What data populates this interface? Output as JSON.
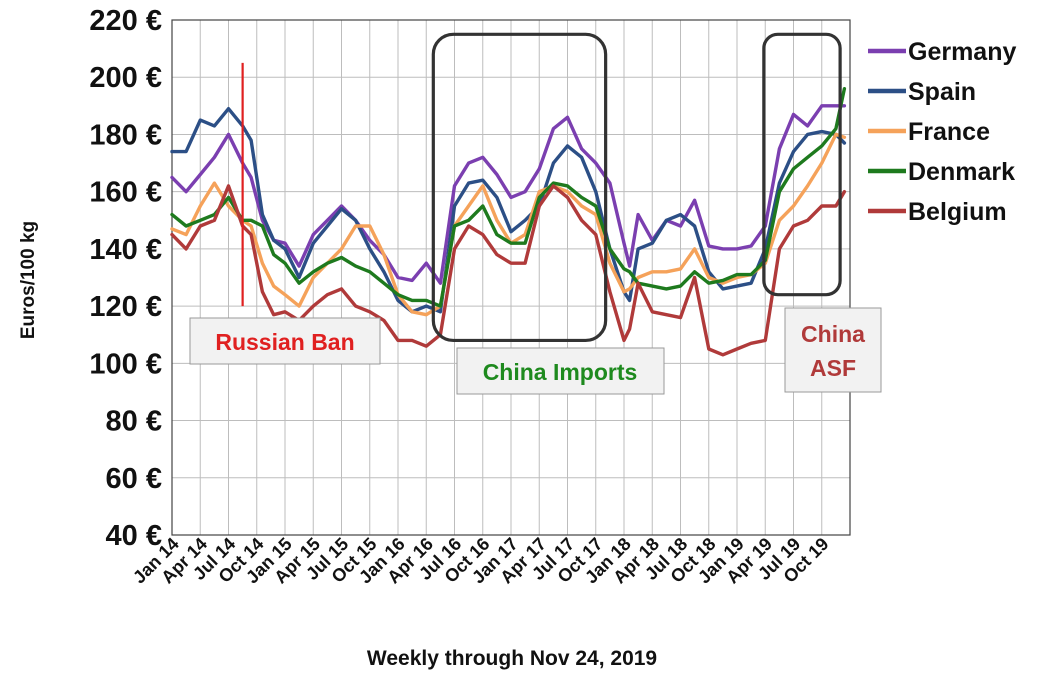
{
  "chart_data": {
    "type": "line",
    "title": "",
    "xlabel": "Weekly through Nov 24, 2019",
    "ylabel": "Euros/100 kg",
    "ylim": [
      40,
      220
    ],
    "y_ticks": [
      {
        "value": 40,
        "label": "40 €"
      },
      {
        "value": 60,
        "label": "60 €"
      },
      {
        "value": 80,
        "label": "80 €"
      },
      {
        "value": 100,
        "label": "100 €"
      },
      {
        "value": 120,
        "label": "120 €"
      },
      {
        "value": 140,
        "label": "140 €"
      },
      {
        "value": 160,
        "label": "160 €"
      },
      {
        "value": 180,
        "label": "180 €"
      },
      {
        "value": 200,
        "label": "200 €"
      },
      {
        "value": 220,
        "label": "220 €"
      }
    ],
    "x_ticks": [
      "Jan 14",
      "Apr 14",
      "Jul 14",
      "Oct 14",
      "Jan 15",
      "Apr 15",
      "Jul 15",
      "Oct 15",
      "Jan 16",
      "Apr 16",
      "Jul 16",
      "Oct 16",
      "Jan 17",
      "Apr 17",
      "Jul 17",
      "Oct 17",
      "Jan 18",
      "Apr 18",
      "Jul 18",
      "Oct 18",
      "Jan 19",
      "Apr 19",
      "Jul 19",
      "Oct 19"
    ],
    "x_range": [
      "Jan 14",
      "Nov 24, 2019"
    ],
    "grid": true,
    "legend_position": "right",
    "series": [
      {
        "name": "Germany",
        "color": "#7b3fb0",
        "points": [
          [
            0,
            165
          ],
          [
            0.5,
            160
          ],
          [
            1,
            166
          ],
          [
            1.5,
            172
          ],
          [
            2,
            180
          ],
          [
            2.5,
            170
          ],
          [
            2.8,
            165
          ],
          [
            3.2,
            150
          ],
          [
            3.6,
            143
          ],
          [
            4,
            142
          ],
          [
            4.5,
            134
          ],
          [
            5,
            145
          ],
          [
            5.5,
            150
          ],
          [
            6,
            155
          ],
          [
            6.5,
            150
          ],
          [
            7,
            143
          ],
          [
            7.5,
            138
          ],
          [
            8,
            130
          ],
          [
            8.5,
            129
          ],
          [
            9,
            135
          ],
          [
            9.5,
            128
          ],
          [
            10,
            162
          ],
          [
            10.5,
            170
          ],
          [
            11,
            172
          ],
          [
            11.5,
            166
          ],
          [
            12,
            158
          ],
          [
            12.5,
            160
          ],
          [
            13,
            168
          ],
          [
            13.5,
            182
          ],
          [
            14,
            186
          ],
          [
            14.5,
            175
          ],
          [
            15,
            170
          ],
          [
            15.5,
            163
          ],
          [
            16,
            142
          ],
          [
            16.2,
            134
          ],
          [
            16.5,
            152
          ],
          [
            17,
            143
          ],
          [
            17.5,
            150
          ],
          [
            18,
            148
          ],
          [
            18.5,
            157
          ],
          [
            19,
            141
          ],
          [
            19.5,
            140
          ],
          [
            20,
            140
          ],
          [
            20.5,
            141
          ],
          [
            21,
            148
          ],
          [
            21.5,
            175
          ],
          [
            22,
            187
          ],
          [
            22.5,
            183
          ],
          [
            23,
            190
          ],
          [
            23.5,
            190
          ],
          [
            23.8,
            190
          ]
        ]
      },
      {
        "name": "Spain",
        "color": "#2c4f86",
        "points": [
          [
            0,
            174
          ],
          [
            0.5,
            174
          ],
          [
            1,
            185
          ],
          [
            1.5,
            183
          ],
          [
            2,
            189
          ],
          [
            2.5,
            183
          ],
          [
            2.8,
            178
          ],
          [
            3.2,
            152
          ],
          [
            3.6,
            143
          ],
          [
            4,
            140
          ],
          [
            4.5,
            130
          ],
          [
            5,
            142
          ],
          [
            5.5,
            148
          ],
          [
            6,
            154
          ],
          [
            6.5,
            150
          ],
          [
            7,
            140
          ],
          [
            7.5,
            132
          ],
          [
            8,
            122
          ],
          [
            8.5,
            118
          ],
          [
            9,
            120
          ],
          [
            9.5,
            118
          ],
          [
            10,
            155
          ],
          [
            10.5,
            163
          ],
          [
            11,
            164
          ],
          [
            11.5,
            158
          ],
          [
            12,
            146
          ],
          [
            12.5,
            150
          ],
          [
            13,
            155
          ],
          [
            13.5,
            170
          ],
          [
            14,
            176
          ],
          [
            14.5,
            172
          ],
          [
            15,
            160
          ],
          [
            15.5,
            140
          ],
          [
            16,
            125
          ],
          [
            16.2,
            122
          ],
          [
            16.5,
            140
          ],
          [
            17,
            142
          ],
          [
            17.5,
            150
          ],
          [
            18,
            152
          ],
          [
            18.5,
            148
          ],
          [
            19,
            132
          ],
          [
            19.5,
            126
          ],
          [
            20,
            127
          ],
          [
            20.5,
            128
          ],
          [
            21,
            140
          ],
          [
            21.5,
            163
          ],
          [
            22,
            174
          ],
          [
            22.5,
            180
          ],
          [
            23,
            181
          ],
          [
            23.5,
            180
          ],
          [
            23.8,
            177
          ]
        ]
      },
      {
        "name": "France",
        "color": "#f5a25a",
        "points": [
          [
            0,
            147
          ],
          [
            0.5,
            145
          ],
          [
            1,
            155
          ],
          [
            1.5,
            163
          ],
          [
            2,
            155
          ],
          [
            2.5,
            150
          ],
          [
            2.8,
            148
          ],
          [
            3.2,
            135
          ],
          [
            3.6,
            127
          ],
          [
            4,
            124
          ],
          [
            4.5,
            120
          ],
          [
            5,
            130
          ],
          [
            5.5,
            135
          ],
          [
            6,
            140
          ],
          [
            6.5,
            148
          ],
          [
            7,
            148
          ],
          [
            7.5,
            138
          ],
          [
            8,
            124
          ],
          [
            8.5,
            118
          ],
          [
            9,
            117
          ],
          [
            9.5,
            120
          ],
          [
            10,
            148
          ],
          [
            10.5,
            155
          ],
          [
            11,
            162
          ],
          [
            11.5,
            150
          ],
          [
            12,
            142
          ],
          [
            12.5,
            145
          ],
          [
            13,
            160
          ],
          [
            13.5,
            162
          ],
          [
            14,
            160
          ],
          [
            14.5,
            155
          ],
          [
            15,
            152
          ],
          [
            15.5,
            135
          ],
          [
            16,
            125
          ],
          [
            16.2,
            126
          ],
          [
            16.5,
            130
          ],
          [
            17,
            132
          ],
          [
            17.5,
            132
          ],
          [
            18,
            133
          ],
          [
            18.5,
            140
          ],
          [
            19,
            130
          ],
          [
            19.5,
            128
          ],
          [
            20,
            130
          ],
          [
            20.5,
            131
          ],
          [
            21,
            135
          ],
          [
            21.5,
            150
          ],
          [
            22,
            155
          ],
          [
            22.5,
            162
          ],
          [
            23,
            170
          ],
          [
            23.5,
            180
          ],
          [
            23.8,
            179
          ]
        ]
      },
      {
        "name": "Denmark",
        "color": "#1e7a1e",
        "points": [
          [
            0,
            152
          ],
          [
            0.5,
            148
          ],
          [
            1,
            150
          ],
          [
            1.5,
            152
          ],
          [
            2,
            158
          ],
          [
            2.5,
            150
          ],
          [
            2.8,
            150
          ],
          [
            3.2,
            148
          ],
          [
            3.6,
            138
          ],
          [
            4,
            135
          ],
          [
            4.5,
            128
          ],
          [
            5,
            132
          ],
          [
            5.5,
            135
          ],
          [
            6,
            137
          ],
          [
            6.5,
            134
          ],
          [
            7,
            132
          ],
          [
            7.5,
            128
          ],
          [
            8,
            124
          ],
          [
            8.5,
            122
          ],
          [
            9,
            122
          ],
          [
            9.5,
            120
          ],
          [
            10,
            148
          ],
          [
            10.5,
            150
          ],
          [
            11,
            155
          ],
          [
            11.5,
            145
          ],
          [
            12,
            142
          ],
          [
            12.5,
            142
          ],
          [
            13,
            158
          ],
          [
            13.5,
            163
          ],
          [
            14,
            162
          ],
          [
            14.5,
            158
          ],
          [
            15,
            155
          ],
          [
            15.5,
            140
          ],
          [
            16,
            133
          ],
          [
            16.2,
            132
          ],
          [
            16.5,
            128
          ],
          [
            17,
            127
          ],
          [
            17.5,
            126
          ],
          [
            18,
            127
          ],
          [
            18.5,
            132
          ],
          [
            19,
            128
          ],
          [
            19.5,
            129
          ],
          [
            20,
            131
          ],
          [
            20.5,
            131
          ],
          [
            21,
            136
          ],
          [
            21.5,
            160
          ],
          [
            22,
            168
          ],
          [
            22.5,
            172
          ],
          [
            23,
            176
          ],
          [
            23.5,
            182
          ],
          [
            23.8,
            196
          ]
        ]
      },
      {
        "name": "Belgium",
        "color": "#b03a3a",
        "points": [
          [
            0,
            145
          ],
          [
            0.5,
            140
          ],
          [
            1,
            148
          ],
          [
            1.5,
            150
          ],
          [
            2,
            162
          ],
          [
            2.5,
            148
          ],
          [
            2.8,
            145
          ],
          [
            3.2,
            125
          ],
          [
            3.6,
            117
          ],
          [
            4,
            118
          ],
          [
            4.5,
            115
          ],
          [
            5,
            120
          ],
          [
            5.5,
            124
          ],
          [
            6,
            126
          ],
          [
            6.5,
            120
          ],
          [
            7,
            118
          ],
          [
            7.5,
            115
          ],
          [
            8,
            108
          ],
          [
            8.5,
            108
          ],
          [
            9,
            106
          ],
          [
            9.5,
            110
          ],
          [
            10,
            140
          ],
          [
            10.5,
            148
          ],
          [
            11,
            145
          ],
          [
            11.5,
            138
          ],
          [
            12,
            135
          ],
          [
            12.5,
            135
          ],
          [
            13,
            155
          ],
          [
            13.5,
            162
          ],
          [
            14,
            158
          ],
          [
            14.5,
            150
          ],
          [
            15,
            145
          ],
          [
            15.5,
            125
          ],
          [
            16,
            108
          ],
          [
            16.2,
            112
          ],
          [
            16.5,
            128
          ],
          [
            17,
            118
          ],
          [
            17.5,
            117
          ],
          [
            18,
            116
          ],
          [
            18.5,
            130
          ],
          [
            19,
            105
          ],
          [
            19.5,
            103
          ],
          [
            20,
            105
          ],
          [
            20.5,
            107
          ],
          [
            21,
            108
          ],
          [
            21.5,
            140
          ],
          [
            22,
            148
          ],
          [
            22.5,
            150
          ],
          [
            23,
            155
          ],
          [
            23.5,
            155
          ],
          [
            23.8,
            160
          ]
        ]
      }
    ],
    "annotations": [
      {
        "name": "russian-ban",
        "text": "Russian Ban",
        "color": "#e02020",
        "x": 2.5,
        "y_top": 205,
        "y_bottom": 120
      },
      {
        "name": "china-imports",
        "text": "China Imports",
        "color": "#1e8a1e",
        "x0": 9.25,
        "x1": 15.35,
        "y0": 108,
        "y1": 215
      },
      {
        "name": "china-asf",
        "text": "China\nASF",
        "color": "#b03a3a",
        "x0": 20.95,
        "x1": 23.65,
        "y0": 124,
        "y1": 215
      }
    ]
  }
}
